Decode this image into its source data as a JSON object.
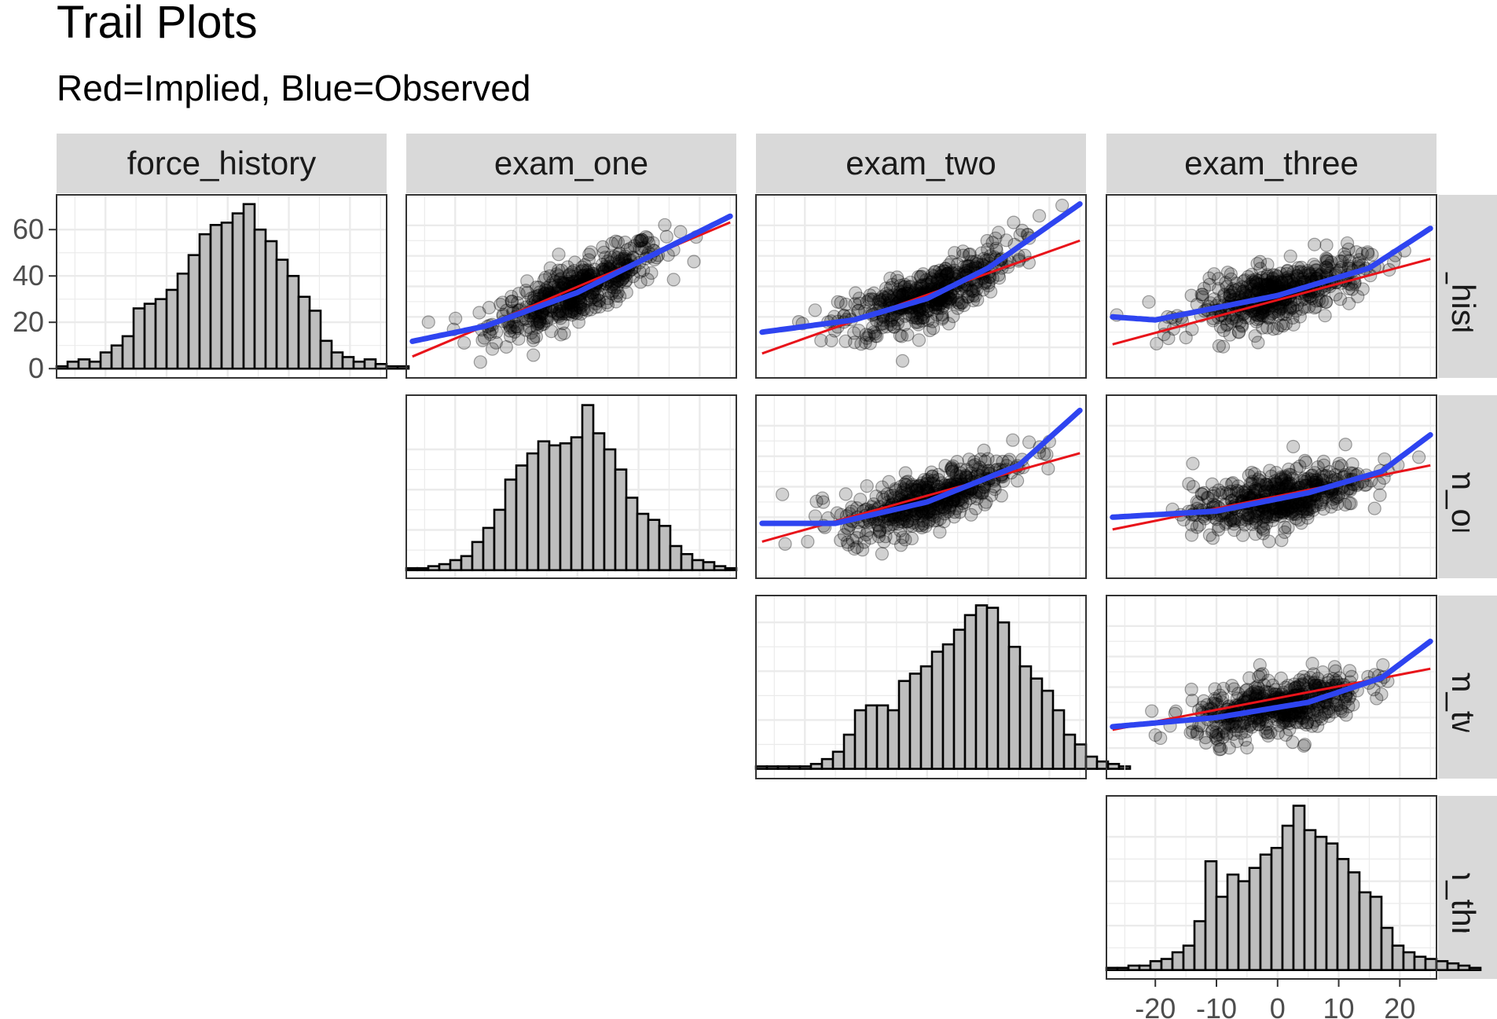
{
  "title": "Trail Plots",
  "subtitle": "Red=Implied, Blue=Observed",
  "colors": {
    "strip_bg": "#d9d9d9",
    "grid": "#ebebeb",
    "panel_border": "#333333",
    "implied_line": "#e8131a",
    "observed_line": "#2e44f0",
    "point": "#000000",
    "bar_fill": "#bebebe",
    "bar_outline": "#000000"
  },
  "chart_data": {
    "type": "pairs-matrix",
    "variables": [
      "force_history",
      "exam_one",
      "exam_two",
      "exam_three"
    ],
    "row_strip_labels": [
      "force_history",
      "exam_one",
      "exam_two",
      "exam_three"
    ],
    "axes": {
      "x_ticks": [
        -20,
        -10,
        0,
        10,
        20
      ],
      "x_tick_labels": [
        "-20",
        "-10",
        "0",
        "10",
        "20"
      ],
      "x_range": [
        -28,
        26
      ],
      "x_axis_panel_column": 3,
      "y_ticks": [
        0,
        20,
        40,
        60
      ],
      "y_tick_labels": [
        "0",
        "20",
        "40",
        "60"
      ],
      "y_range": [
        -4,
        75
      ],
      "y_axis_panel_row": 0
    },
    "histograms": [
      {
        "variable": "force_history",
        "bin_start": -28,
        "bin_width": 1.8,
        "counts": [
          1,
          3,
          4,
          3,
          7,
          10,
          14,
          26,
          28,
          30,
          34,
          41,
          49,
          58,
          62,
          63,
          67,
          71,
          60,
          55,
          47,
          40,
          31,
          25,
          12,
          7,
          5,
          3,
          4,
          2,
          1,
          1
        ]
      },
      {
        "variable": "exam_one",
        "bin_start": -28,
        "bin_width": 1.8,
        "counts": [
          1,
          1,
          2,
          3,
          5,
          7,
          14,
          21,
          30,
          45,
          52,
          58,
          64,
          62,
          63,
          66,
          82,
          68,
          60,
          50,
          36,
          28,
          25,
          22,
          12,
          8,
          5,
          4,
          2,
          1
        ]
      },
      {
        "variable": "exam_two",
        "bin_start": -28,
        "bin_width": 1.8,
        "counts": [
          1,
          1,
          1,
          1,
          1,
          2,
          4,
          7,
          14,
          24,
          26,
          26,
          24,
          36,
          39,
          42,
          48,
          51,
          57,
          63,
          67,
          66,
          60,
          50,
          42,
          37,
          32,
          24,
          14,
          10,
          5,
          3,
          2,
          1
        ]
      },
      {
        "variable": "exam_three",
        "bin_start": -28,
        "bin_width": 1.8,
        "counts": [
          1,
          1,
          2,
          2,
          4,
          5,
          8,
          11,
          22,
          49,
          33,
          43,
          40,
          46,
          52,
          55,
          65,
          74,
          63,
          60,
          57,
          50,
          44,
          35,
          33,
          19,
          11,
          8,
          6,
          5,
          4,
          3,
          2,
          1
        ]
      }
    ],
    "scatter_panels": [
      {
        "row": 0,
        "col": 1,
        "x_var": "exam_one",
        "y_var": "force_history",
        "implied_line": [
          [
            -27,
            -23
          ],
          [
            25,
            21
          ]
        ],
        "observed_curve": [
          [
            -27,
            -18
          ],
          [
            -15,
            -13
          ],
          [
            0,
            -2
          ],
          [
            10,
            8
          ],
          [
            25,
            23
          ]
        ]
      },
      {
        "row": 0,
        "col": 2,
        "x_var": "exam_two",
        "y_var": "force_history",
        "implied_line": [
          [
            -27,
            -22
          ],
          [
            25,
            15
          ]
        ],
        "observed_curve": [
          [
            -27,
            -15
          ],
          [
            -12,
            -11
          ],
          [
            0,
            -4
          ],
          [
            10,
            6
          ],
          [
            25,
            27
          ]
        ]
      },
      {
        "row": 0,
        "col": 3,
        "x_var": "exam_three",
        "y_var": "force_history",
        "implied_line": [
          [
            -27,
            -19
          ],
          [
            25,
            9
          ]
        ],
        "observed_curve": [
          [
            -27,
            -10
          ],
          [
            -20,
            -11
          ],
          [
            0,
            -3
          ],
          [
            15,
            6
          ],
          [
            25,
            19
          ]
        ]
      },
      {
        "row": 1,
        "col": 2,
        "x_var": "exam_two",
        "y_var": "exam_one",
        "implied_line": [
          [
            -27,
            -18
          ],
          [
            25,
            11
          ]
        ],
        "observed_curve": [
          [
            -27,
            -12
          ],
          [
            -15,
            -12
          ],
          [
            0,
            -5
          ],
          [
            15,
            7
          ],
          [
            25,
            25
          ]
        ]
      },
      {
        "row": 1,
        "col": 3,
        "x_var": "exam_three",
        "y_var": "exam_one",
        "implied_line": [
          [
            -27,
            -14
          ],
          [
            25,
            7
          ]
        ],
        "observed_curve": [
          [
            -27,
            -10
          ],
          [
            -10,
            -8
          ],
          [
            5,
            -2
          ],
          [
            17,
            5
          ],
          [
            25,
            17
          ]
        ]
      },
      {
        "row": 2,
        "col": 3,
        "x_var": "exam_three",
        "y_var": "exam_two",
        "implied_line": [
          [
            -27,
            -14
          ],
          [
            25,
            6
          ]
        ],
        "observed_curve": [
          [
            -27,
            -13
          ],
          [
            -10,
            -10
          ],
          [
            5,
            -5
          ],
          [
            17,
            3
          ],
          [
            25,
            15
          ]
        ]
      }
    ],
    "scatter_points_per_panel": 500
  }
}
